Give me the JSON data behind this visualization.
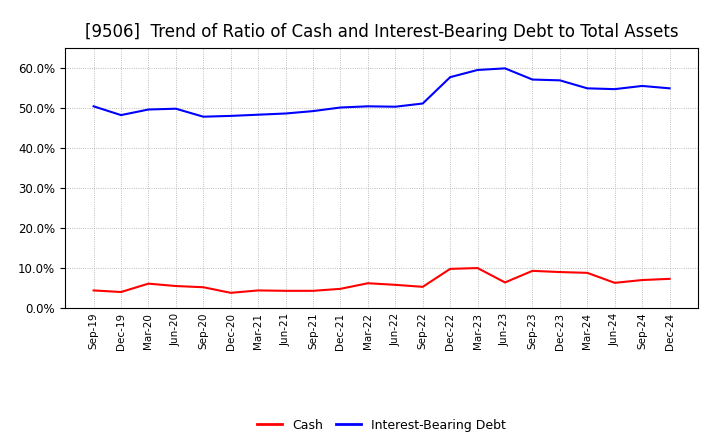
{
  "title": "[9506]  Trend of Ratio of Cash and Interest-Bearing Debt to Total Assets",
  "x_labels": [
    "Sep-19",
    "Dec-19",
    "Mar-20",
    "Jun-20",
    "Sep-20",
    "Dec-20",
    "Mar-21",
    "Jun-21",
    "Sep-21",
    "Dec-21",
    "Mar-22",
    "Jun-22",
    "Sep-22",
    "Dec-22",
    "Mar-23",
    "Jun-23",
    "Sep-23",
    "Dec-23",
    "Mar-24",
    "Jun-24",
    "Sep-24",
    "Dec-24"
  ],
  "cash": [
    0.044,
    0.04,
    0.061,
    0.055,
    0.052,
    0.038,
    0.044,
    0.043,
    0.043,
    0.048,
    0.062,
    0.058,
    0.053,
    0.098,
    0.1,
    0.064,
    0.093,
    0.09,
    0.088,
    0.063,
    0.07,
    0.073
  ],
  "debt": [
    0.505,
    0.483,
    0.497,
    0.499,
    0.479,
    0.481,
    0.484,
    0.487,
    0.493,
    0.502,
    0.505,
    0.504,
    0.512,
    0.578,
    0.596,
    0.6,
    0.572,
    0.57,
    0.55,
    0.548,
    0.556,
    0.55
  ],
  "cash_color": "#ff0000",
  "debt_color": "#0000ff",
  "background_color": "#ffffff",
  "grid_color": "#aaaaaa",
  "ylim": [
    0.0,
    0.65
  ],
  "yticks": [
    0.0,
    0.1,
    0.2,
    0.3,
    0.4,
    0.5,
    0.6
  ],
  "title_fontsize": 12,
  "legend_labels": [
    "Cash",
    "Interest-Bearing Debt"
  ]
}
